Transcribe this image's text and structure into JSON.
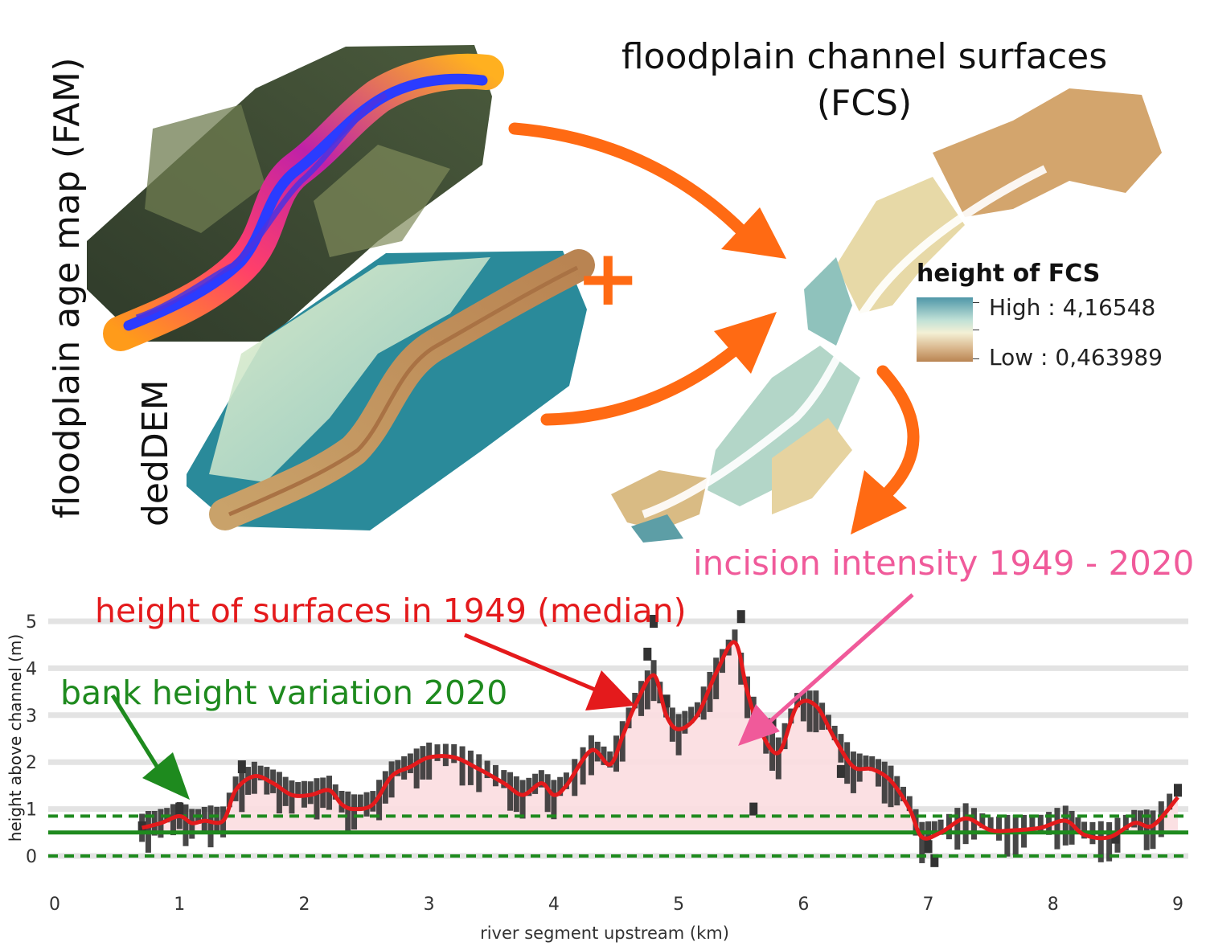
{
  "labels": {
    "fam": "floodplain age map (FAM)",
    "dem": "dedDEM",
    "fcs_line1": "floodplain channel surfaces",
    "fcs_line2": "(FCS)",
    "legend_title": "height of FCS",
    "legend_high": "High : 4,16548",
    "legend_low": "Low : 0,463989",
    "incision": "incision intensity 1949 - 2020",
    "median": "height of surfaces in 1949 (median)",
    "bank": "bank height variation 2020",
    "plus": "+"
  },
  "colors": {
    "arrow": "#ff6a13",
    "incision": "#f05a9a",
    "median_line": "#e41a1c",
    "bank": "#1e8a1e",
    "fill": "#fbdde0",
    "bars": "#333333",
    "dem_teal": "#2a8a9a",
    "dem_sand": "#d2b27d"
  },
  "chart_data": {
    "type": "line",
    "xlabel": "river segment upstream (km)",
    "ylabel": "height above channel (m)",
    "xlim": [
      0,
      9.2
    ],
    "ylim": [
      -0.2,
      5.4
    ],
    "xticks": [
      0,
      1,
      2,
      3,
      4,
      5,
      6,
      7,
      8,
      9
    ],
    "yticks": [
      0,
      1,
      2,
      3,
      4,
      5
    ],
    "grid": "horizontal",
    "bank_height": {
      "median": 0.5,
      "lower": 0.0,
      "upper": 0.85
    },
    "series": [
      {
        "name": "height of surfaces in 1949 (median)",
        "x": [
          0.7,
          0.85,
          1.0,
          1.1,
          1.2,
          1.35,
          1.45,
          1.6,
          1.75,
          1.9,
          2.05,
          2.2,
          2.3,
          2.4,
          2.55,
          2.7,
          2.85,
          3.0,
          3.2,
          3.4,
          3.6,
          3.75,
          3.9,
          4.0,
          4.1,
          4.3,
          4.45,
          4.55,
          4.65,
          4.8,
          4.9,
          5.0,
          5.15,
          5.3,
          5.45,
          5.55,
          5.65,
          5.8,
          5.95,
          6.1,
          6.25,
          6.4,
          6.55,
          6.7,
          6.85,
          6.95,
          7.1,
          7.3,
          7.5,
          7.7,
          7.9,
          8.1,
          8.25,
          8.45,
          8.65,
          8.8,
          9.0
        ],
        "y": [
          0.6,
          0.7,
          0.85,
          0.7,
          0.75,
          0.75,
          1.4,
          1.7,
          1.55,
          1.3,
          1.3,
          1.4,
          1.1,
          1.0,
          1.1,
          1.7,
          1.9,
          2.1,
          2.1,
          1.85,
          1.55,
          1.3,
          1.55,
          1.3,
          1.5,
          2.25,
          1.95,
          2.55,
          3.2,
          3.85,
          3.0,
          2.7,
          3.0,
          3.9,
          4.55,
          3.5,
          2.7,
          2.2,
          3.2,
          3.2,
          2.5,
          1.9,
          1.85,
          1.6,
          1.0,
          0.4,
          0.5,
          0.8,
          0.55,
          0.55,
          0.6,
          0.75,
          0.45,
          0.4,
          0.7,
          0.65,
          1.25
        ]
      },
      {
        "name": "bank height variation 2020",
        "x": [
          0.7,
          1.0,
          1.5,
          4.75,
          4.8,
          4.9,
          5.5,
          5.6,
          5.75,
          6.3,
          7.0,
          7.05,
          8.5,
          9.0
        ],
        "y": [
          0.6,
          1.0,
          1.9,
          4.3,
          5.0,
          3.3,
          5.1,
          1.0,
          2.8,
          1.8,
          0.2,
          -0.1,
          0.4,
          1.4
        ]
      }
    ]
  }
}
